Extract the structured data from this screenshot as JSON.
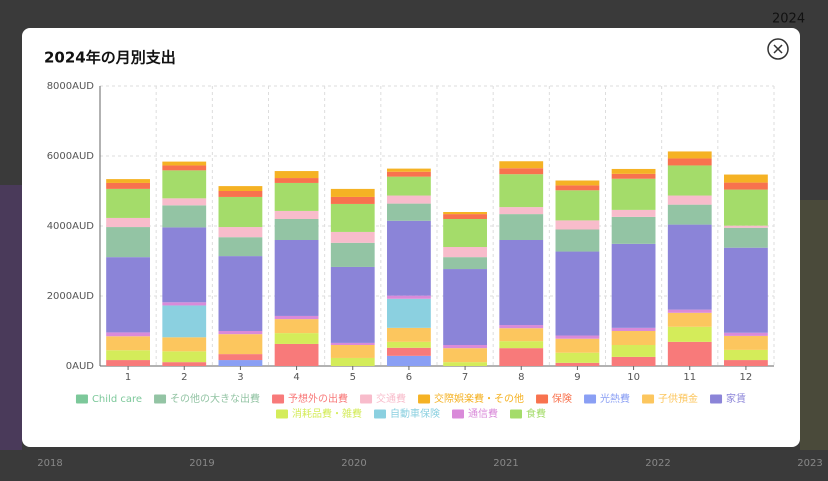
{
  "background": {
    "corner_year": "2024",
    "years": [
      "2018",
      "2019",
      "2020",
      "2021",
      "2022",
      "2023"
    ]
  },
  "chart_data": {
    "type": "bar",
    "stacked": true,
    "title": "2024年の月別支出",
    "categories": [
      "1",
      "2",
      "3",
      "4",
      "5",
      "6",
      "7",
      "8",
      "9",
      "10",
      "11",
      "12"
    ],
    "series": [
      {
        "name": "Child care",
        "color": "#7cc89a",
        "values": [
          0,
          0,
          0,
          0,
          0,
          0,
          0,
          0,
          0,
          0,
          0,
          0
        ]
      },
      {
        "name": "その他の大きな出費",
        "color": "#93c4a4",
        "values": [
          860,
          630,
          540,
          600,
          690,
          490,
          340,
          740,
          630,
          770,
          570,
          570
        ]
      },
      {
        "name": "予想外の出費",
        "color": "#f87a7a",
        "values": [
          170,
          110,
          170,
          630,
          0,
          230,
          0,
          510,
          90,
          260,
          690,
          170
        ]
      },
      {
        "name": "交通費",
        "color": "#f8bccb",
        "values": [
          260,
          200,
          290,
          230,
          310,
          230,
          290,
          200,
          260,
          200,
          260,
          60
        ]
      },
      {
        "name": "交際娯楽費・その他",
        "color": "#f5b224",
        "values": [
          110,
          110,
          140,
          200,
          230,
          90,
          60,
          200,
          140,
          140,
          200,
          230
        ]
      },
      {
        "name": "保険",
        "color": "#f8724e",
        "values": [
          170,
          140,
          170,
          140,
          200,
          140,
          140,
          170,
          140,
          140,
          200,
          200
        ]
      },
      {
        "name": "光熱費",
        "color": "#8a9ff4",
        "values": [
          0,
          0,
          170,
          0,
          0,
          290,
          0,
          0,
          0,
          0,
          0,
          0
        ]
      },
      {
        "name": "子供預金",
        "color": "#fcc65e",
        "values": [
          400,
          400,
          570,
          400,
          370,
          400,
          400,
          370,
          400,
          400,
          400,
          400
        ]
      },
      {
        "name": "家賃",
        "color": "#8b84d8",
        "values": [
          2150,
          2140,
          2140,
          2170,
          2170,
          2140,
          2170,
          2430,
          2400,
          2400,
          2430,
          2430
        ]
      },
      {
        "name": "消耗品費・雑費",
        "color": "#d4ec5a",
        "values": [
          280,
          310,
          0,
          310,
          230,
          170,
          110,
          200,
          290,
          340,
          430,
          290
        ]
      },
      {
        "name": "自動車保険",
        "color": "#8bd0e0",
        "values": [
          0,
          910,
          0,
          0,
          0,
          830,
          0,
          0,
          0,
          0,
          0,
          0
        ]
      },
      {
        "name": "通信費",
        "color": "#d98ad9",
        "values": [
          110,
          90,
          90,
          90,
          60,
          90,
          90,
          90,
          90,
          90,
          90,
          90
        ]
      },
      {
        "name": "食費",
        "color": "#a4dc6a",
        "values": [
          830,
          800,
          860,
          800,
          800,
          540,
          800,
          940,
          860,
          890,
          860,
          1030
        ]
      }
    ],
    "ylim": [
      0,
      8000
    ],
    "yticks": [
      {
        "value": 0,
        "label": "0AUD"
      },
      {
        "value": 2000,
        "label": "2000AUD"
      },
      {
        "value": 4000,
        "label": "4000AUD"
      },
      {
        "value": 6000,
        "label": "6000AUD"
      },
      {
        "value": 8000,
        "label": "8000AUD"
      }
    ],
    "grid": true
  }
}
